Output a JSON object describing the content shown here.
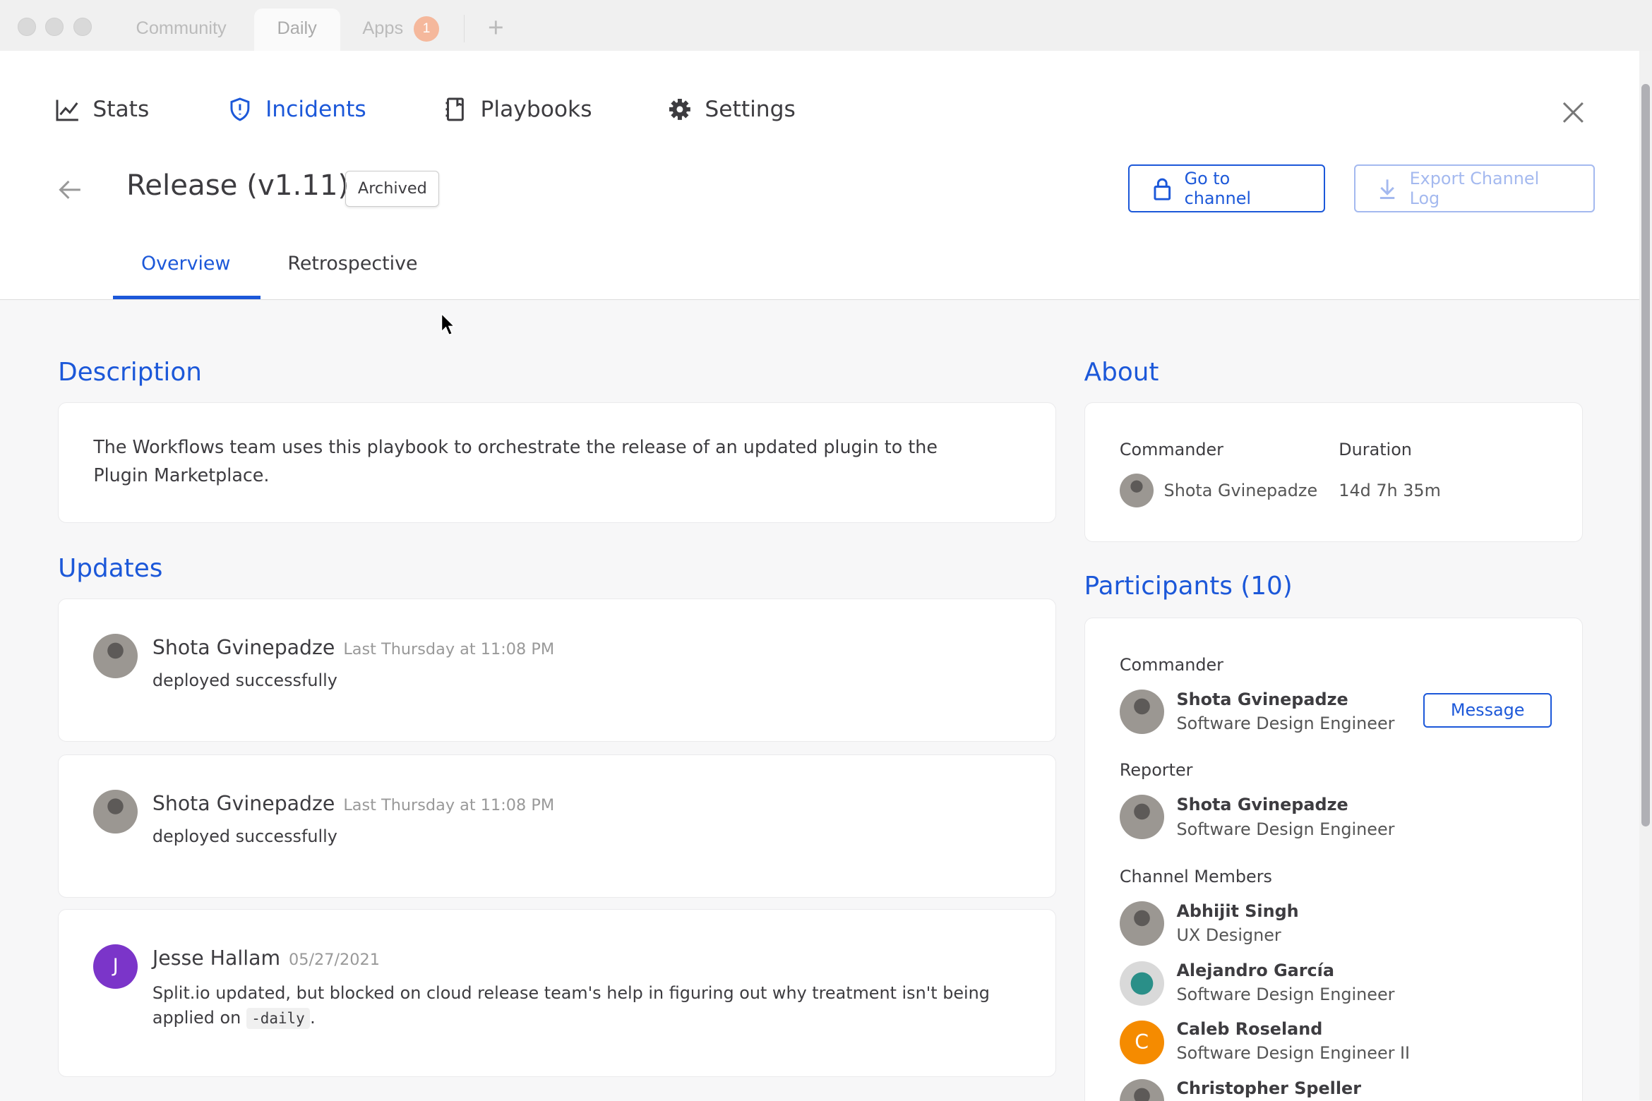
{
  "window": {
    "tabs": [
      {
        "label": "Community"
      },
      {
        "label": "Daily"
      },
      {
        "label": "Apps",
        "badge": "1"
      }
    ],
    "new_tab": "+"
  },
  "nav": {
    "items": [
      {
        "label": "Stats",
        "icon": "chart-line-icon"
      },
      {
        "label": "Incidents",
        "icon": "shield-alert-icon",
        "active": true
      },
      {
        "label": "Playbooks",
        "icon": "book-icon"
      },
      {
        "label": "Settings",
        "icon": "gear-icon"
      }
    ]
  },
  "incident": {
    "title": "Release (v1.11)",
    "status": "Archived",
    "go_to_channel": "Go to channel",
    "export": "Export Channel Log"
  },
  "tabs": {
    "overview": "Overview",
    "retrospective": "Retrospective",
    "active": "Overview"
  },
  "description": {
    "heading": "Description",
    "text": "The Workflows team uses this playbook to orchestrate the release of an updated plugin to the Plugin Marketplace."
  },
  "updates": {
    "heading": "Updates",
    "items": [
      {
        "name": "Shota Gvinepadze",
        "time": "Last Thursday at 11:08 PM",
        "text": "deployed successfully"
      },
      {
        "name": "Shota Gvinepadze",
        "time": "Last Thursday at 11:08 PM",
        "text": "deployed successfully"
      },
      {
        "name": "Jesse Hallam",
        "initial": "J",
        "time": "05/27/2021",
        "text_before": "Split.io updated, but blocked on cloud release team's help in figuring out why treatment isn't being applied on ",
        "code": "-daily",
        "text_after": "."
      }
    ]
  },
  "about": {
    "heading": "About",
    "commander_label": "Commander",
    "duration_label": "Duration",
    "commander": "Shota Gvinepadze",
    "duration": "14d 7h 35m"
  },
  "participants": {
    "heading": "Participants (10)",
    "commander_label": "Commander",
    "reporter_label": "Reporter",
    "members_label": "Channel Members",
    "message": "Message",
    "commander": {
      "name": "Shota Gvinepadze",
      "role": "Software Design Engineer"
    },
    "reporter": {
      "name": "Shota Gvinepadze",
      "role": "Software Design Engineer"
    },
    "members": [
      {
        "name": "Abhijit Singh",
        "role": "UX Designer"
      },
      {
        "name": "Alejandro García",
        "role": "Software Design Engineer"
      },
      {
        "name": "Caleb Roseland",
        "role": "Software Design Engineer II",
        "initial": "C"
      },
      {
        "name": "Christopher Speller",
        "role": ""
      }
    ]
  },
  "colors": {
    "accent": "#1c58d9",
    "badge": "#f5b89c",
    "caleb": "#f58b00",
    "jesse": "#7b35c9"
  }
}
